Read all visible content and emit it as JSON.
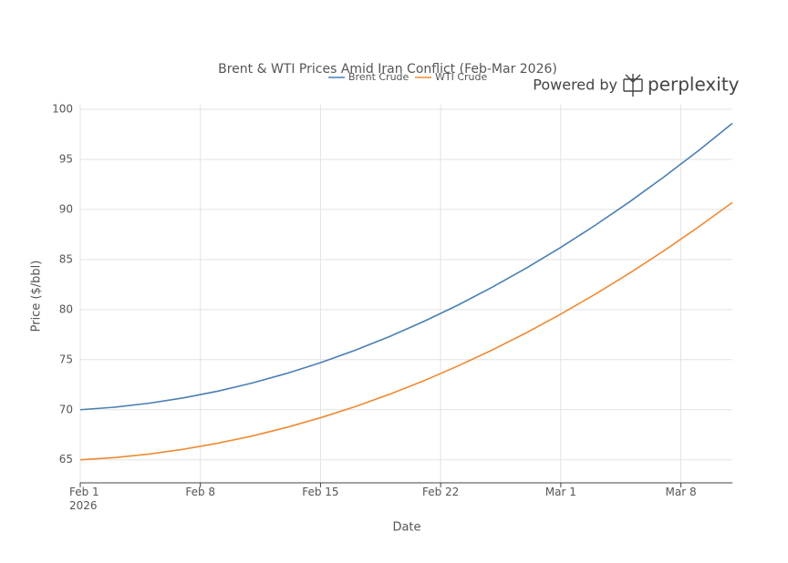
{
  "chart_data": {
    "type": "line",
    "title": "Brent & WTI Prices Amid Iran Conflict (Feb-Mar 2026)",
    "x_label": "Date",
    "y_label": "Price ($/bbl)",
    "x": [
      "2026-02-01",
      "2026-02-03",
      "2026-02-05",
      "2026-02-07",
      "2026-02-09",
      "2026-02-11",
      "2026-02-13",
      "2026-02-15",
      "2026-02-17",
      "2026-02-19",
      "2026-02-21",
      "2026-02-23",
      "2026-02-25",
      "2026-02-27",
      "2026-03-01",
      "2026-03-03",
      "2026-03-05",
      "2026-03-07",
      "2026-03-09",
      "2026-03-11"
    ],
    "series": [
      {
        "name": "Brent Crude",
        "color": "#4a7fb3",
        "values": [
          70.0,
          70.25,
          70.65,
          71.18,
          71.85,
          72.66,
          73.61,
          74.7,
          75.93,
          77.29,
          78.8,
          80.44,
          82.23,
          84.15,
          86.21,
          88.41,
          90.75,
          93.23,
          95.84,
          98.6
        ]
      },
      {
        "name": "WTI Crude",
        "color": "#ef8a33",
        "values": [
          65.0,
          65.22,
          65.57,
          66.05,
          66.65,
          67.37,
          68.22,
          69.2,
          70.3,
          71.53,
          72.88,
          74.36,
          75.96,
          77.69,
          79.55,
          81.53,
          83.63,
          85.86,
          88.22,
          90.7
        ]
      }
    ],
    "xlim": [
      "2026-02-01",
      "2026-03-11"
    ],
    "xticks": [
      {
        "value": "2026-02-01",
        "label": "Feb 1\n2026"
      },
      {
        "value": "2026-02-08",
        "label": "Feb 8"
      },
      {
        "value": "2026-02-15",
        "label": "Feb 15"
      },
      {
        "value": "2026-02-22",
        "label": "Feb 22"
      },
      {
        "value": "2026-03-01",
        "label": "Mar 1"
      },
      {
        "value": "2026-03-08",
        "label": "Mar 8"
      }
    ],
    "ylim": [
      62.7,
      100.5
    ],
    "yticks": [
      65,
      70,
      75,
      80,
      85,
      90,
      95,
      100
    ],
    "grid": true,
    "legend": "top"
  },
  "branding": {
    "prefix": "Powered by",
    "name": "perplexity"
  }
}
